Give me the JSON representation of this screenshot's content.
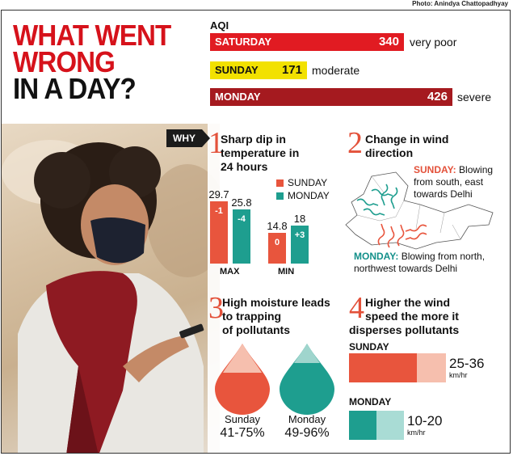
{
  "credit": "Photo: Anindya Chattopadhyay",
  "title": {
    "line1": "WHAT WENT",
    "line2": "WRONG",
    "line3": "IN A DAY?"
  },
  "aqi": {
    "label": "AQI",
    "days": [
      {
        "day": "SATURDAY",
        "value": 340,
        "category": "very poor",
        "color": "#e11b22"
      },
      {
        "day": "SUNDAY",
        "value": 171,
        "category": "moderate",
        "color": "#f2e100"
      },
      {
        "day": "MONDAY",
        "value": 426,
        "category": "severe",
        "color": "#a51a1f"
      }
    ]
  },
  "why_label": "WHY",
  "section1": {
    "num": "1",
    "title_lines": [
      "Sharp dip in",
      "temperature in",
      "24 hours"
    ],
    "legend": [
      {
        "name": "SUNDAY",
        "color": "#e8553d"
      },
      {
        "name": "MONDAY",
        "color": "#1e9e8f"
      }
    ],
    "chart_data": {
      "type": "bar",
      "categories": [
        "MAX",
        "MIN"
      ],
      "series": [
        {
          "name": "SUNDAY",
          "values": [
            29.7,
            14.8
          ],
          "changes": [
            "-1",
            "0"
          ]
        },
        {
          "name": "MONDAY",
          "values": [
            25.8,
            18
          ],
          "changes": [
            "-4",
            "+3"
          ]
        }
      ],
      "value_labels": [
        [
          "29.7",
          "14.8"
        ],
        [
          "25.8",
          "18"
        ]
      ]
    }
  },
  "section2": {
    "num": "2",
    "title_lines": [
      "Change in wind",
      "direction"
    ],
    "sunday_label": "SUNDAY:",
    "sunday_text": [
      "Blowing",
      "from south, east",
      "towards Delhi"
    ],
    "monday_label": "MONDAY:",
    "monday_text": [
      "Blowing from north,",
      "northwest towards Delhi"
    ]
  },
  "section3": {
    "num": "3",
    "title_lines": [
      "High moisture leads",
      "to trapping",
      "of pollutants"
    ],
    "drops": [
      {
        "day": "Sunday",
        "range": "41-75%",
        "color": "#e8553d",
        "light": "#f6bfae"
      },
      {
        "day": "Monday",
        "range": "49-96%",
        "color": "#1e9e8f",
        "light": "#9fd5cd"
      }
    ]
  },
  "section4": {
    "num": "4",
    "title_lines": [
      "Higher the wind",
      "speed the more it",
      "disperses pollutants"
    ],
    "days": [
      {
        "day": "SUNDAY",
        "speed": "25-36",
        "unit": "km/hr",
        "color": "#e8553d",
        "light": "#f6bfae"
      },
      {
        "day": "MONDAY",
        "speed": "10-20",
        "unit": "km/hr",
        "color": "#1e9e8f",
        "light": "#a9dcd5"
      }
    ]
  }
}
